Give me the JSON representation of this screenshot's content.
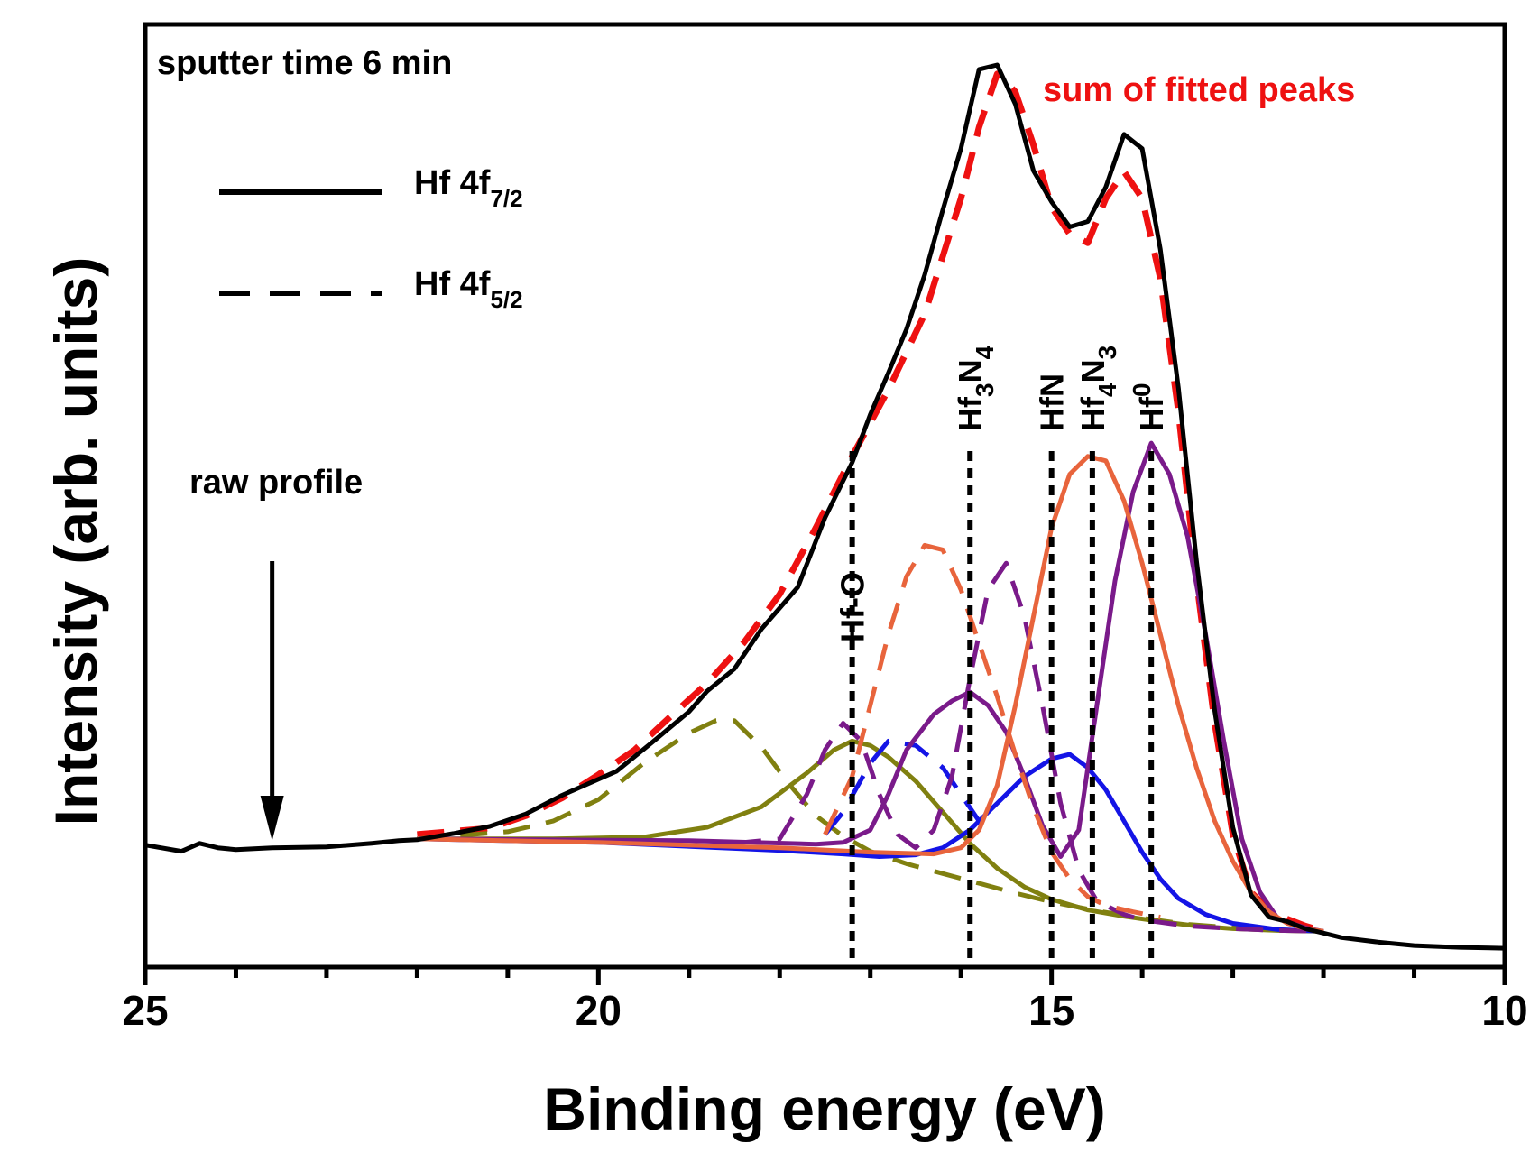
{
  "chart_data": {
    "type": "line",
    "title": "",
    "xlabel": "Binding energy (eV)",
    "ylabel": "Intensity (arb. units)",
    "xlim": [
      25,
      10
    ],
    "x_reversed": true,
    "ylim": [
      0,
      100
    ],
    "x_ticks": [
      25,
      20,
      15,
      10
    ],
    "x_tick_labels": [
      "25",
      "20",
      "15",
      "10"
    ],
    "y_ticks_shown": false,
    "grid": false,
    "annotations": {
      "sputter": "sputter time 6 min",
      "sum": "sum of fitted peaks",
      "raw": "raw profile",
      "raw_arrow_x": 23.6
    },
    "legend": {
      "placement": "top-left",
      "entries": [
        {
          "base": "Hf 4f",
          "sub": "7/2",
          "style": "solid"
        },
        {
          "base": "Hf 4f",
          "sub": "5/2",
          "style": "dashed"
        }
      ]
    },
    "peak_markers": [
      {
        "x": 17.2,
        "parts": [
          {
            "t": "Hf-O",
            "s": "base"
          }
        ]
      },
      {
        "x": 15.9,
        "parts": [
          {
            "t": "Hf",
            "s": "base"
          },
          {
            "t": "3",
            "s": "sub"
          },
          {
            "t": "N",
            "s": "base"
          },
          {
            "t": "4",
            "s": "sub"
          }
        ]
      },
      {
        "x": 15.0,
        "parts": [
          {
            "t": "HfN",
            "s": "base"
          }
        ]
      },
      {
        "x": 14.55,
        "parts": [
          {
            "t": "Hf",
            "s": "base"
          },
          {
            "t": "4",
            "s": "sub"
          },
          {
            "t": "N",
            "s": "base"
          },
          {
            "t": "3",
            "s": "sub"
          }
        ]
      },
      {
        "x": 13.9,
        "parts": [
          {
            "t": "Hf",
            "s": "base"
          },
          {
            "t": "0",
            "s": "sup"
          }
        ]
      }
    ],
    "raw_profile": {
      "color": "#000000",
      "x": [
        25,
        24.6,
        24.4,
        24.2,
        24.0,
        23.6,
        23.0,
        22.5,
        22.2,
        22.0,
        21.6,
        21.2,
        20.8,
        20.4,
        20.2,
        19.8,
        19.4,
        19.0,
        18.8,
        18.5,
        18.2,
        17.8,
        17.5,
        17.2,
        17.0,
        16.8,
        16.6,
        16.4,
        16.2,
        16.0,
        15.8,
        15.6,
        15.4,
        15.2,
        15.0,
        14.8,
        14.6,
        14.4,
        14.2,
        14.0,
        13.8,
        13.6,
        13.4,
        13.2,
        13.0,
        12.8,
        12.6,
        12.4,
        12.2,
        12.0,
        11.8,
        11.4,
        11.0,
        10.5,
        10.0
      ],
      "y": [
        12.3,
        11.6,
        12.5,
        12.0,
        11.8,
        12.0,
        12.1,
        12.5,
        12.8,
        12.9,
        13.6,
        14.4,
        15.8,
        17.9,
        18.8,
        20.6,
        23.9,
        27.3,
        29.6,
        32.1,
        36.6,
        41.3,
        49.1,
        55.3,
        60.7,
        65.4,
        70.3,
        76.4,
        83.7,
        90.6,
        99.5,
        100.0,
        95.6,
        88.1,
        84.6,
        81.8,
        82.4,
        86.3,
        92.2,
        90.6,
        79.3,
        63.7,
        44.2,
        27.4,
        14.3,
        6.7,
        4.2,
        3.7,
        2.9,
        2.4,
        1.9,
        1.4,
        1.0,
        0.8,
        0.7
      ]
    },
    "series": [
      {
        "name": "",
        "style": "dashed",
        "color": "#ee1111",
        "width": 7,
        "x": [
          22.0,
          21.2,
          20.8,
          20.4,
          20.0,
          19.6,
          19.2,
          18.8,
          18.4,
          18.0,
          17.6,
          17.2,
          16.8,
          16.4,
          16.0,
          15.8,
          15.6,
          15.4,
          15.2,
          15.0,
          14.8,
          14.6,
          14.4,
          14.2,
          14.0,
          13.8,
          13.6,
          13.4,
          13.2,
          13.0,
          12.8,
          12.6,
          12.4,
          12.2,
          12.0
        ],
        "y": [
          13.5,
          14.2,
          15.6,
          17.6,
          20.2,
          23.0,
          26.8,
          30.5,
          35.0,
          40.5,
          48.0,
          56.0,
          63.5,
          72.0,
          85.0,
          93.0,
          99.0,
          97.0,
          91.0,
          84.0,
          81.0,
          80.0,
          85.0,
          88.0,
          85.0,
          76.0,
          61.0,
          42.0,
          26.0,
          13.5,
          7.0,
          5.0,
          4.0,
          3.2,
          2.6
        ]
      },
      {
        "name": "",
        "style": "solid",
        "color": "#808010",
        "width": 5,
        "x": [
          22.0,
          20.5,
          19.5,
          18.8,
          18.2,
          17.7,
          17.4,
          17.2,
          17.0,
          16.8,
          16.5,
          16.2,
          15.9,
          15.6,
          15.3,
          15.0,
          14.6,
          14.2,
          13.8,
          13.4,
          13.0,
          12.5,
          12.0
        ],
        "y": [
          13.0,
          13.0,
          13.2,
          14.3,
          16.6,
          20.4,
          23.0,
          24.0,
          23.5,
          22.2,
          19.5,
          16.0,
          12.5,
          9.7,
          7.6,
          6.2,
          5.0,
          4.3,
          3.7,
          3.2,
          2.9,
          2.7,
          2.6
        ]
      },
      {
        "name": "",
        "style": "dashed",
        "color": "#808010",
        "width": 5,
        "x": [
          22.0,
          21.0,
          20.5,
          20.0,
          19.5,
          19.0,
          18.7,
          18.5,
          18.2,
          17.9,
          17.6,
          17.3,
          17.0,
          16.6,
          16.2,
          15.8,
          15.4,
          15.0,
          14.5,
          14.0,
          13.5,
          13.0,
          12.5,
          12.0
        ],
        "y": [
          13.0,
          13.8,
          15.0,
          17.4,
          21.5,
          24.9,
          26.3,
          26.3,
          23.3,
          19.2,
          15.6,
          13.3,
          11.6,
          10.2,
          9.1,
          8.0,
          6.9,
          5.9,
          4.9,
          4.1,
          3.4,
          3.0,
          2.8,
          2.6
        ]
      },
      {
        "name": "",
        "style": "solid",
        "color": "#1414e6",
        "width": 5,
        "x": [
          22.0,
          20.0,
          18.0,
          17.3,
          16.9,
          16.5,
          16.2,
          15.9,
          15.6,
          15.3,
          15.0,
          14.8,
          14.6,
          14.4,
          14.2,
          14.0,
          13.8,
          13.6,
          13.3,
          13.0,
          12.5,
          12.0
        ],
        "y": [
          13.0,
          12.6,
          11.7,
          11.3,
          11.0,
          11.2,
          12.0,
          14.0,
          17.0,
          20.0,
          22.0,
          22.5,
          21.0,
          18.5,
          15.0,
          11.5,
          8.5,
          6.3,
          4.5,
          3.5,
          2.8,
          2.6
        ]
      },
      {
        "name": "",
        "style": "dashed",
        "color": "#1414e6",
        "width": 5,
        "x": [
          17.5,
          17.3,
          17.0,
          16.8,
          16.5,
          16.2,
          16.0,
          15.8
        ],
        "y": [
          13.5,
          16.0,
          21.5,
          24.0,
          23.5,
          21.0,
          18.0,
          15.0
        ]
      },
      {
        "name": "",
        "style": "solid",
        "color": "#7a1a8a",
        "width": 5,
        "x": [
          22.0,
          19.0,
          17.6,
          17.3,
          17.0,
          16.8,
          16.6,
          16.3,
          16.1,
          15.9,
          15.7,
          15.5,
          15.3,
          15.1,
          14.9,
          14.7,
          14.5,
          14.3,
          14.1,
          13.9,
          13.7,
          13.5,
          13.3,
          13.1,
          12.9,
          12.7,
          12.5,
          12.2,
          12.0
        ],
        "y": [
          13.0,
          12.8,
          12.4,
          12.6,
          14.0,
          18.0,
          23.0,
          27.0,
          28.5,
          29.5,
          28.0,
          25.0,
          20.0,
          14.5,
          11.0,
          14.0,
          28.0,
          42.0,
          52.0,
          57.5,
          54.0,
          47.0,
          36.0,
          24.0,
          13.0,
          7.0,
          4.0,
          3.0,
          2.6
        ]
      },
      {
        "name": "",
        "style": "dashed",
        "color": "#7a1a8a",
        "width": 5,
        "x": [
          18.5,
          18.0,
          17.7,
          17.5,
          17.3,
          17.1,
          16.9,
          16.7,
          16.5,
          16.3,
          16.1,
          15.9,
          15.7,
          15.5,
          15.3,
          15.1,
          14.9,
          14.7,
          14.5,
          14.2,
          14.0,
          13.5,
          13.0,
          12.5,
          12.0
        ],
        "y": [
          12.5,
          13.0,
          18.0,
          23.0,
          26.0,
          24.0,
          18.0,
          13.5,
          12.0,
          14.0,
          20.0,
          31.0,
          41.0,
          44.0,
          38.0,
          28.0,
          17.0,
          9.5,
          6.0,
          4.5,
          3.9,
          3.2,
          2.9,
          2.7,
          2.6
        ]
      },
      {
        "name": "",
        "style": "solid",
        "color": "#e8643c",
        "width": 5,
        "x": [
          22.0,
          20.0,
          18.0,
          17.0,
          16.3,
          16.0,
          15.8,
          15.6,
          15.4,
          15.2,
          15.0,
          14.8,
          14.6,
          14.4,
          14.2,
          14.0,
          13.8,
          13.6,
          13.4,
          13.2,
          13.0,
          12.8,
          12.6,
          12.4,
          12.2,
          12.0
        ],
        "y": [
          13.0,
          12.6,
          12.0,
          11.5,
          11.3,
          12.0,
          14.0,
          19.0,
          28.0,
          38.0,
          48.0,
          54.0,
          56.0,
          55.5,
          51.0,
          44.0,
          36.0,
          28.0,
          21.0,
          15.0,
          10.5,
          7.0,
          4.8,
          3.5,
          2.9,
          2.6
        ]
      },
      {
        "name": "",
        "style": "dashed",
        "color": "#e8643c",
        "width": 5,
        "x": [
          17.5,
          17.2,
          17.0,
          16.8,
          16.6,
          16.4,
          16.2,
          16.0,
          15.8,
          15.6,
          15.4,
          15.2,
          15.0,
          14.8,
          14.6,
          14.4,
          14.1,
          13.8
        ],
        "y": [
          13.5,
          20.0,
          28.0,
          36.0,
          42.5,
          46.0,
          45.5,
          41.0,
          35.0,
          29.0,
          22.5,
          16.5,
          11.5,
          8.5,
          6.5,
          5.5,
          4.8,
          4.2
        ]
      }
    ]
  }
}
